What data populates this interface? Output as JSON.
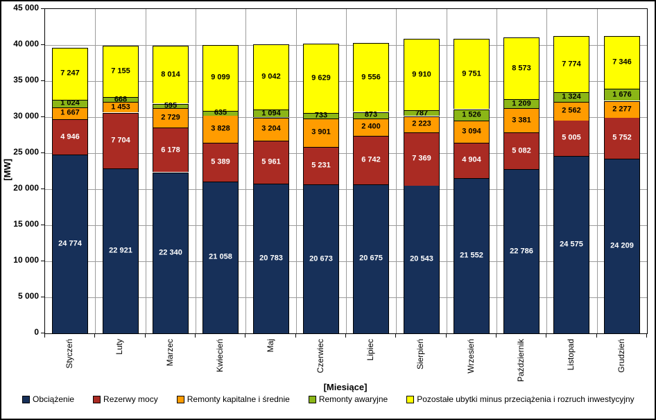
{
  "chart_data": {
    "type": "bar",
    "stacked": true,
    "title": "",
    "xlabel": "[Miesiące]",
    "ylabel": "[MW]",
    "ylim": [
      0,
      45000
    ],
    "ytick_step": 5000,
    "grid": true,
    "gridline_color": "#9c9c9c",
    "legend_position": "bottom",
    "categories": [
      "Styczeń",
      "Luty",
      "Marzec",
      "Kwiecień",
      "Maj",
      "Czerwiec",
      "Lipiec",
      "Sierpień",
      "Wrzesień",
      "Październik",
      "Listopad",
      "Grudzień"
    ],
    "series": [
      {
        "name": "Obciążenie",
        "color": "#173059",
        "label_color": "#ffffff",
        "values": [
          24774,
          22921,
          22340,
          21058,
          20783,
          20673,
          20675,
          20543,
          21552,
          22786,
          24575,
          24209
        ]
      },
      {
        "name": "Rezerwy mocy",
        "color": "#aa2b23",
        "label_color": "#ffffff",
        "values": [
          4946,
          7704,
          6178,
          5389,
          5961,
          5231,
          6742,
          7369,
          4904,
          5082,
          5005,
          5752
        ]
      },
      {
        "name": "Remonty kapitalne i średnie",
        "color": "#ff9c00",
        "label_color": "#000000",
        "values": [
          1667,
          1453,
          2729,
          3828,
          3204,
          3901,
          2400,
          2223,
          3094,
          3381,
          2562,
          2277
        ]
      },
      {
        "name": "Remonty awaryjne",
        "color": "#8bb617",
        "label_color": "#000000",
        "values": [
          1024,
          668,
          595,
          635,
          1094,
          733,
          873,
          787,
          1526,
          1209,
          1324,
          1676
        ]
      },
      {
        "name": "Pozostałe ubytki minus przeciążenia i rozruch inwestycyjny",
        "color": "#ffff00",
        "label_color": "#000000",
        "values": [
          7247,
          7155,
          8014,
          9099,
          9042,
          9629,
          9556,
          9910,
          9751,
          8573,
          7774,
          7346
        ]
      }
    ]
  }
}
